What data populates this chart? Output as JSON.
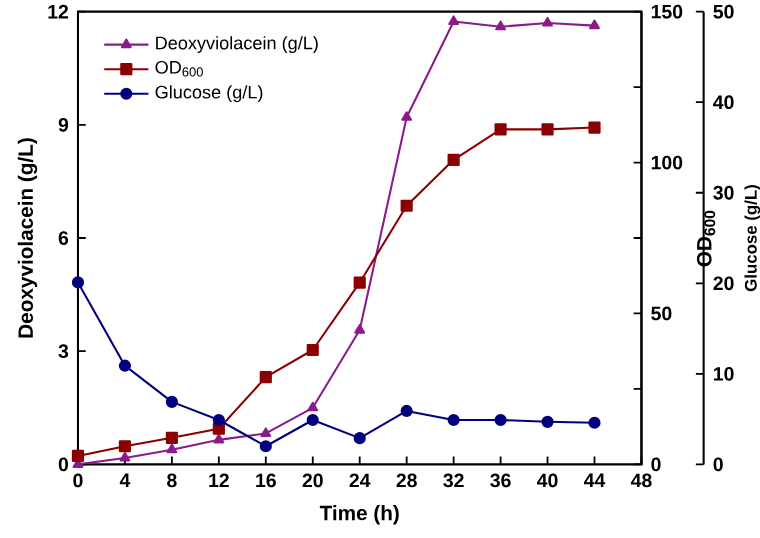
{
  "chart_data": {
    "type": "line",
    "xlabel": "Time (h)",
    "ylabel": "Deoxyviolacein (g/L)",
    "y2label": "OD$_{600}$",
    "y3label": "Glucose (g/L)",
    "x": [
      0,
      4,
      8,
      12,
      16,
      20,
      24,
      28,
      32,
      36,
      40,
      44
    ],
    "series": [
      {
        "name": "Deoxyviolacein (g/L)",
        "color": "#8b1a8b",
        "marker": "triangle",
        "axis": "y",
        "values": [
          0,
          0.17,
          0.39,
          0.65,
          0.82,
          1.5,
          3.56,
          9.2,
          11.74,
          11.6,
          11.7,
          11.63
        ]
      },
      {
        "name": "OD$_{600}$",
        "color": "#8b0000",
        "marker": "square",
        "axis": "y2",
        "values": [
          2.8,
          6,
          8.8,
          11.8,
          28.9,
          37.9,
          60.2,
          85.7,
          100.9,
          111,
          111,
          111.6
        ]
      },
      {
        "name": "Glucose (g/L)",
        "color": "#00007f",
        "marker": "circle",
        "axis": "y3",
        "values": [
          20.1,
          10.9,
          6.9,
          4.9,
          2.0,
          4.9,
          2.9,
          5.9,
          4.9,
          4.9,
          4.7,
          4.6
        ]
      }
    ],
    "xlim": [
      0,
      48
    ],
    "xticks": [
      0,
      4,
      8,
      12,
      16,
      20,
      24,
      28,
      32,
      36,
      40,
      44,
      48
    ],
    "ylim": [
      0,
      12
    ],
    "yticks": [
      0,
      3,
      6,
      9,
      12
    ],
    "y2lim": [
      0,
      150
    ],
    "y2ticks": [
      0,
      {
        "value": 25,
        "label": null
      },
      50,
      {
        "value": 75,
        "label": null
      },
      100,
      {
        "value": 125,
        "label": null
      },
      150
    ],
    "y3lim": [
      0,
      50
    ],
    "y3ticks": [
      0,
      10,
      20,
      30,
      40,
      50
    ],
    "legend": "top left",
    "grid": false,
    "line_style": "solid"
  }
}
